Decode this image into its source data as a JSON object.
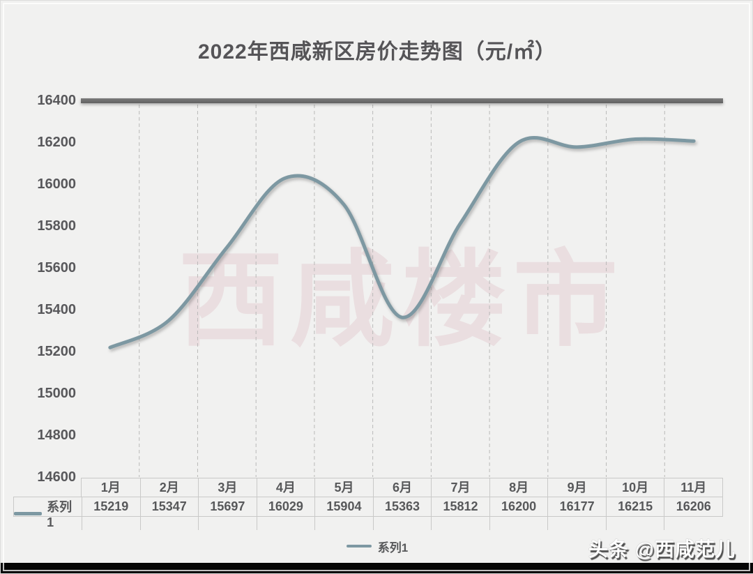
{
  "title": "2022年西咸新区房价走势图（元/㎡）",
  "watermark": "西咸楼市",
  "footer_credit": "头条 @西咸范儿",
  "legend": {
    "label": "系列1"
  },
  "colors": {
    "background": "#f1f1f0",
    "line": "#7d98a2",
    "text": "#57585a",
    "top_border_bar": "#6a6a6a",
    "grid_dash": "#b9b9b8",
    "table_border": "#c9c9c8",
    "watermark_pink": "rgba(211,150,158,0.20)",
    "bottom_bar": "#060606",
    "credit_text": "#ffffff"
  },
  "chart_data": {
    "type": "line",
    "title": "2022年西咸新区房价走势图（元/㎡）",
    "categories": [
      "1月",
      "2月",
      "3月",
      "4月",
      "5月",
      "6月",
      "7月",
      "8月",
      "9月",
      "10月",
      "11月"
    ],
    "series": [
      {
        "name": "系列1",
        "values": [
          15219,
          15347,
          15697,
          16029,
          15904,
          15363,
          15812,
          16200,
          16177,
          16215,
          16206
        ]
      }
    ],
    "xlabel": "",
    "ylabel": "",
    "ylim": [
      14600,
      16400
    ],
    "y_ticks": [
      16400,
      16200,
      16000,
      15800,
      15600,
      15400,
      15200,
      15000,
      14800,
      14600
    ],
    "grid": "vertical-dashed",
    "legend_position": "bottom",
    "smoothed": true
  }
}
